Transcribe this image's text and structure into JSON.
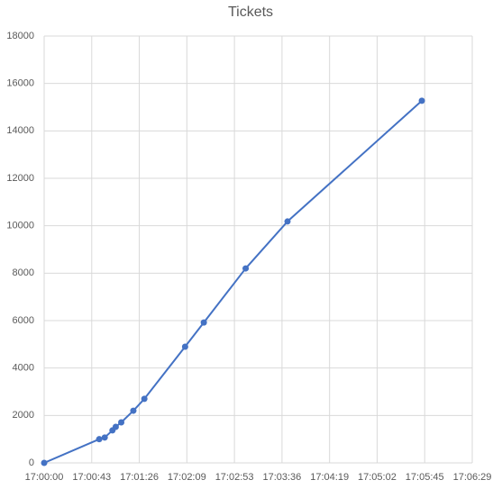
{
  "chart_data": {
    "type": "scatter",
    "title": "Tickets",
    "series": [
      {
        "name": "Tickets",
        "color": "#4472c4",
        "x": [
          0,
          50,
          55,
          62,
          65,
          70,
          81,
          91,
          128,
          145,
          183,
          221,
          343
        ],
        "values": [
          0,
          1000,
          1070,
          1370,
          1520,
          1710,
          2200,
          2700,
          4900,
          5920,
          8200,
          10180,
          15270
        ]
      }
    ],
    "xlim": [
      0,
      388.8
    ],
    "xticks": [
      {
        "value": 0,
        "label": "17:00:00"
      },
      {
        "value": 43.2,
        "label": "17:00:43"
      },
      {
        "value": 86.4,
        "label": "17:01:26"
      },
      {
        "value": 129.6,
        "label": "17:02:09"
      },
      {
        "value": 172.8,
        "label": "17:02:53"
      },
      {
        "value": 216,
        "label": "17:03:36"
      },
      {
        "value": 259.2,
        "label": "17:04:19"
      },
      {
        "value": 302.4,
        "label": "17:05:02"
      },
      {
        "value": 345.6,
        "label": "17:05:45"
      },
      {
        "value": 388.8,
        "label": "17:06:29"
      }
    ],
    "ylim": [
      0,
      18000
    ],
    "yticks": [
      0,
      2000,
      4000,
      6000,
      8000,
      10000,
      12000,
      14000,
      16000,
      18000
    ],
    "grid": true
  }
}
